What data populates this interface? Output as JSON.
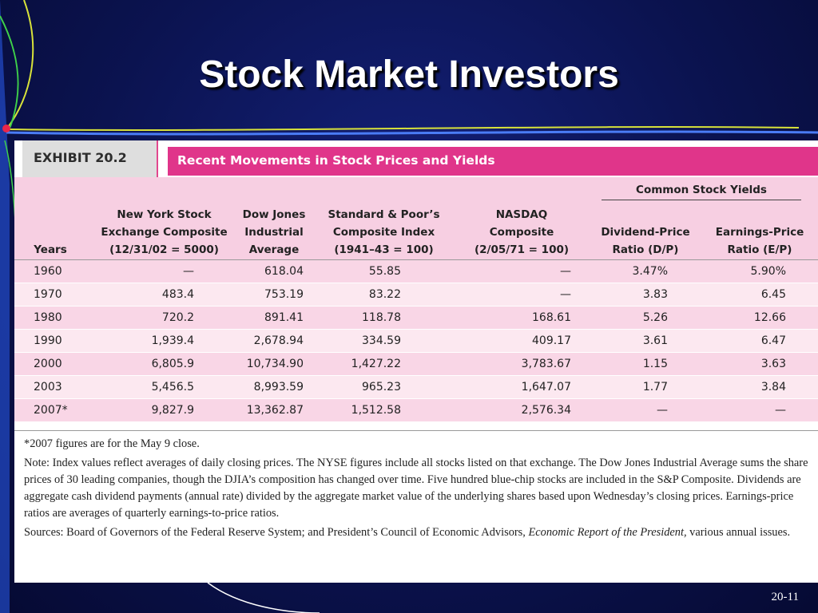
{
  "slide": {
    "title": "Stock Market Investors",
    "page_number": "20-11"
  },
  "exhibit": {
    "label": "EXHIBIT 20.2",
    "title": "Recent Movements in Stock Prices and Yields",
    "group_header": "Common Stock Yields",
    "columns": [
      {
        "lines": [
          "Years"
        ]
      },
      {
        "lines": [
          "New York Stock",
          "Exchange Composite",
          "(12/31/02 = 5000)"
        ]
      },
      {
        "lines": [
          "Dow Jones",
          "Industrial",
          "Average"
        ]
      },
      {
        "lines": [
          "Standard & Poor’s",
          "Composite Index",
          "(1941–43 = 100)"
        ]
      },
      {
        "lines": [
          "NASDAQ",
          "Composite",
          "(2/05/71 = 100)"
        ]
      },
      {
        "lines": [
          "Dividend-Price",
          "Ratio (D/P)"
        ]
      },
      {
        "lines": [
          "Earnings-Price",
          "Ratio (E/P)"
        ]
      }
    ],
    "rows": [
      [
        "1960",
        "—",
        "618.04",
        "55.85",
        "—",
        "3.47%",
        "5.90%"
      ],
      [
        "1970",
        "483.4",
        "753.19",
        "83.22",
        "—",
        "3.83",
        "6.45"
      ],
      [
        "1980",
        "720.2",
        "891.41",
        "118.78",
        "168.61",
        "5.26",
        "12.66"
      ],
      [
        "1990",
        "1,939.4",
        "2,678.94",
        "334.59",
        "409.17",
        "3.61",
        "6.47"
      ],
      [
        "2000",
        "6,805.9",
        "10,734.90",
        "1,427.22",
        "3,783.67",
        "1.15",
        "3.63"
      ],
      [
        "2003",
        "5,456.5",
        "8,993.59",
        "965.23",
        "1,647.07",
        "1.77",
        "3.84"
      ],
      [
        "2007*",
        "9,827.9",
        "13,362.87",
        "1,512.58",
        "2,576.34",
        "—",
        "—"
      ]
    ],
    "footnote": "*2007 figures are for the May 9 close.",
    "note": "Note: Index values reflect averages of daily closing prices. The NYSE figures include all stocks listed on that exchange. The Dow Jones Industrial Average sums the share prices of 30 leading companies, though the DJIA’s composition has changed over time. Five hundred blue-chip stocks are included in the S&P Composite. Dividends are aggregate cash dividend payments (annual rate) divided by the aggregate market value of the underlying shares based upon Wednesday’s closing prices. Earnings-price ratios are averages of quarterly earnings-to-price ratios.",
    "sources_prefix": "Sources: Board of Governors of the Federal Reserve System; and President’s Council of Economic Advisors, ",
    "sources_italic": "Economic Report of the President,",
    "sources_suffix": " various annual issues."
  },
  "colors": {
    "background": "#0b1350",
    "accent_pink": "#e0358a",
    "header_band": "#f7cfe2",
    "row_shade": "#f9d6e6",
    "row_light": "#fce8f0",
    "deco_yellow": "#d8e23a",
    "deco_green": "#3fd14a",
    "deco_blue": "#3c6ff0",
    "deco_dot": "#e8264a"
  }
}
